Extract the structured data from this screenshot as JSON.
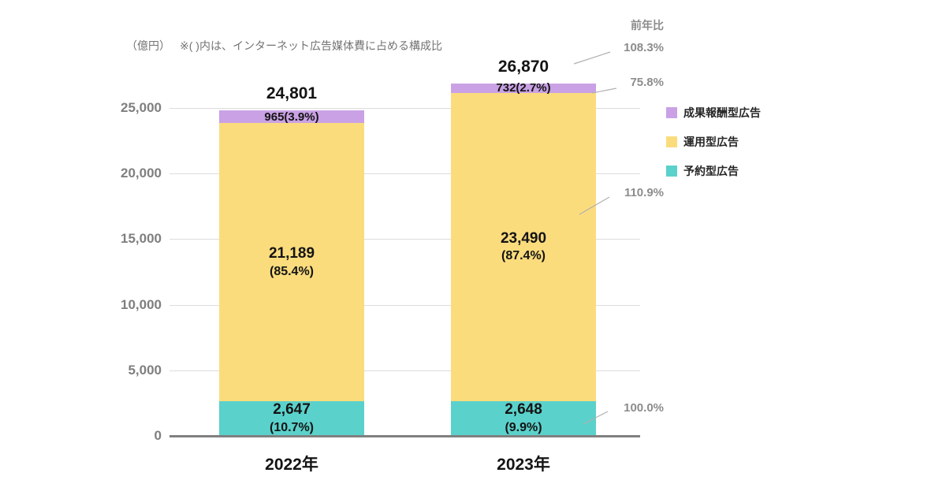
{
  "header": {
    "unit_label": "（億円）",
    "note": "※(  )内は、インターネット広告媒体費に占める構成比"
  },
  "yoy": {
    "label": "前年比",
    "items": [
      {
        "name": "total",
        "value": "108.3%"
      },
      {
        "name": "成果報酬型広告",
        "value": "75.8%"
      },
      {
        "name": "運用型広告",
        "value": "110.9%"
      },
      {
        "name": "予約型広告",
        "value": "100.0%"
      }
    ]
  },
  "chart_data": {
    "type": "bar",
    "stacked": true,
    "title": "",
    "unit": "億円",
    "categories": [
      "2022年",
      "2023年"
    ],
    "series": [
      {
        "name": "予約型広告",
        "color": "#5BD1CB",
        "values": [
          2647,
          2648
        ],
        "labels": [
          [
            "2,647",
            "(10.7%)"
          ],
          [
            "2,648",
            "(9.9%)"
          ]
        ]
      },
      {
        "name": "運用型広告",
        "color": "#FBDC7D",
        "values": [
          21189,
          23490
        ],
        "labels": [
          [
            "21,189",
            "(85.4%)"
          ],
          [
            "23,490",
            "(87.4%)"
          ]
        ]
      },
      {
        "name": "成果報酬型広告",
        "color": "#C9A1E4",
        "values": [
          965,
          732
        ],
        "labels": [
          [
            "965(3.9%)"
          ],
          [
            "732(2.7%)"
          ]
        ]
      }
    ],
    "totals": [
      24801,
      26870
    ],
    "total_labels": [
      "24,801",
      "26,870"
    ],
    "ylim": [
      0,
      25000
    ],
    "yticks": [
      0,
      5000,
      10000,
      15000,
      20000,
      25000
    ],
    "ytick_labels": [
      "0",
      "5,000",
      "10,000",
      "15,000",
      "20,000",
      "25,000"
    ],
    "legend": [
      "成果報酬型広告",
      "運用型広告",
      "予約型広告"
    ],
    "legend_position": "right",
    "yoy_percent": {
      "total": "108.3%",
      "成果報酬型広告": "75.8%",
      "運用型広告": "110.9%",
      "予約型広告": "100.0%"
    }
  }
}
